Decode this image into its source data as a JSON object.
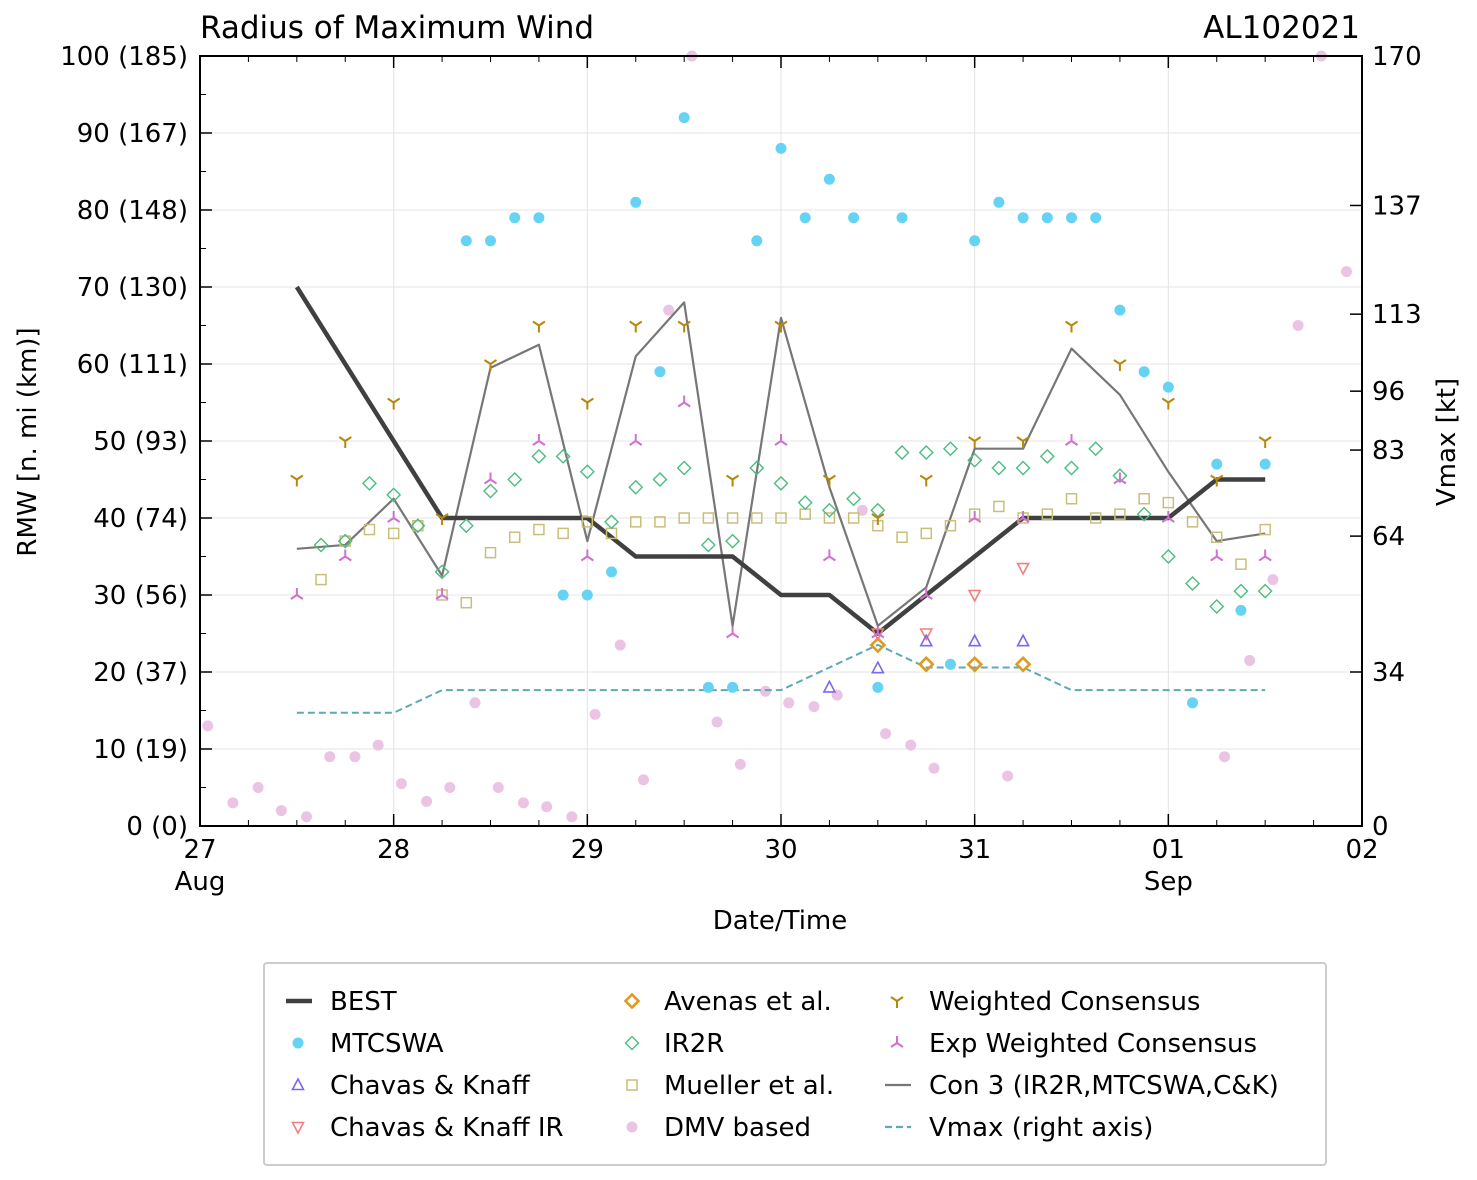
{
  "chart_data": {
    "type": "scatter",
    "title": "Radius of Maximum Wind",
    "storm_id": "AL102021",
    "xlabel": "Date/Time",
    "ylabel": "RMW [n. mi (km)]",
    "ylabel_right": "Vmax [kt]",
    "xlim": [
      0,
      6
    ],
    "ylim": [
      0,
      100
    ],
    "ylim_right": [
      0,
      170
    ],
    "x_units": "days since 27 Aug 00Z",
    "x_ticks": [
      {
        "x": 0,
        "label": "27",
        "sub": "Aug"
      },
      {
        "x": 1,
        "label": "28",
        "sub": ""
      },
      {
        "x": 2,
        "label": "29",
        "sub": ""
      },
      {
        "x": 3,
        "label": "30",
        "sub": ""
      },
      {
        "x": 4,
        "label": "31",
        "sub": ""
      },
      {
        "x": 5,
        "label": "01",
        "sub": "Sep"
      },
      {
        "x": 6,
        "label": "02",
        "sub": ""
      }
    ],
    "y_ticks": [
      {
        "v": 0,
        "label": "0 (0)"
      },
      {
        "v": 10,
        "label": "10 (19)"
      },
      {
        "v": 20,
        "label": "20 (37)"
      },
      {
        "v": 30,
        "label": "30 (56)"
      },
      {
        "v": 40,
        "label": "40 (74)"
      },
      {
        "v": 50,
        "label": "50 (93)"
      },
      {
        "v": 60,
        "label": "60 (111)"
      },
      {
        "v": 70,
        "label": "70 (130)"
      },
      {
        "v": 80,
        "label": "80 (148)"
      },
      {
        "v": 90,
        "label": "90 (167)"
      },
      {
        "v": 100,
        "label": "100 (185)"
      }
    ],
    "y_right_ticks": [
      {
        "v": 0,
        "label": "0"
      },
      {
        "v": 34,
        "label": "34"
      },
      {
        "v": 64,
        "label": "64"
      },
      {
        "v": 83,
        "label": "83"
      },
      {
        "v": 96,
        "label": "96"
      },
      {
        "v": 113,
        "label": "113"
      },
      {
        "v": 137,
        "label": "137"
      },
      {
        "v": 170,
        "label": "170"
      }
    ],
    "series": [
      {
        "name": "BEST",
        "key": "best",
        "kind": "line",
        "color": "#404040",
        "points": [
          [
            0.5,
            70
          ],
          [
            1.25,
            40
          ],
          [
            2,
            40
          ],
          [
            2.25,
            35
          ],
          [
            2.75,
            35
          ],
          [
            3,
            30
          ],
          [
            3.25,
            30
          ],
          [
            3.5,
            25
          ],
          [
            4,
            35
          ],
          [
            4.25,
            40
          ],
          [
            5,
            40
          ],
          [
            5.25,
            45
          ],
          [
            5.5,
            45
          ]
        ]
      },
      {
        "name": "MTCSWA",
        "key": "mtcswa",
        "kind": "circle",
        "color": "#66d3f5",
        "points": [
          [
            1.375,
            76
          ],
          [
            1.5,
            76
          ],
          [
            1.625,
            79
          ],
          [
            1.75,
            79
          ],
          [
            1.875,
            30
          ],
          [
            2,
            30
          ],
          [
            2.125,
            33
          ],
          [
            2.25,
            81
          ],
          [
            2.375,
            59
          ],
          [
            2.5,
            92
          ],
          [
            2.625,
            18
          ],
          [
            2.75,
            18
          ],
          [
            2.875,
            76
          ],
          [
            3,
            88
          ],
          [
            3.125,
            79
          ],
          [
            3.25,
            84
          ],
          [
            3.375,
            79
          ],
          [
            3.5,
            18
          ],
          [
            3.625,
            79
          ],
          [
            3.875,
            21
          ],
          [
            4,
            76
          ],
          [
            4.125,
            81
          ],
          [
            4.25,
            79
          ],
          [
            4.375,
            79
          ],
          [
            4.5,
            79
          ],
          [
            4.625,
            79
          ],
          [
            4.75,
            67
          ],
          [
            4.875,
            59
          ],
          [
            5,
            57
          ],
          [
            5.125,
            16
          ],
          [
            5.25,
            47
          ],
          [
            5.375,
            28
          ],
          [
            5.5,
            47
          ]
        ]
      },
      {
        "name": "Chavas & Knaff",
        "key": "ck",
        "kind": "triangle-up",
        "color": "#7b68ee",
        "points": [
          [
            3.25,
            18
          ],
          [
            3.5,
            20.5
          ],
          [
            3.75,
            24
          ],
          [
            4,
            24
          ],
          [
            4.25,
            24
          ]
        ]
      },
      {
        "name": "Chavas & Knaff IR",
        "key": "ckir",
        "kind": "triangle-down",
        "color": "#f08080",
        "points": [
          [
            3.5,
            25
          ],
          [
            3.75,
            25
          ],
          [
            4,
            30
          ],
          [
            4.25,
            33.5
          ]
        ]
      },
      {
        "name": "Avenas et al.",
        "key": "avenas",
        "kind": "diamond-bold",
        "color": "#e09a20",
        "points": [
          [
            3.5,
            23.5
          ],
          [
            3.75,
            21
          ],
          [
            4,
            21
          ],
          [
            4.25,
            21
          ]
        ]
      },
      {
        "name": "IR2R",
        "key": "ir2r",
        "kind": "diamond",
        "color": "#4cbd80",
        "points": [
          [
            0.625,
            36.5
          ],
          [
            0.75,
            37
          ],
          [
            0.875,
            44.5
          ],
          [
            1,
            43
          ],
          [
            1.125,
            39
          ],
          [
            1.25,
            33
          ],
          [
            1.375,
            39
          ],
          [
            1.5,
            43.5
          ],
          [
            1.625,
            45
          ],
          [
            1.75,
            48
          ],
          [
            1.875,
            48
          ],
          [
            2,
            46
          ],
          [
            2.125,
            39.5
          ],
          [
            2.25,
            44
          ],
          [
            2.375,
            45
          ],
          [
            2.5,
            46.5
          ],
          [
            2.625,
            36.5
          ],
          [
            2.75,
            37
          ],
          [
            2.875,
            46.5
          ],
          [
            3,
            44.5
          ],
          [
            3.125,
            42
          ],
          [
            3.25,
            41
          ],
          [
            3.375,
            42.5
          ],
          [
            3.5,
            41
          ],
          [
            3.625,
            48.5
          ],
          [
            3.75,
            48.5
          ],
          [
            3.875,
            49
          ],
          [
            4,
            47.5
          ],
          [
            4.125,
            46.5
          ],
          [
            4.25,
            46.5
          ],
          [
            4.375,
            48
          ],
          [
            4.5,
            46.5
          ],
          [
            4.625,
            49
          ],
          [
            4.75,
            45.5
          ],
          [
            4.875,
            40.5
          ],
          [
            5,
            35
          ],
          [
            5.125,
            31.5
          ],
          [
            5.25,
            28.5
          ],
          [
            5.375,
            30.5
          ],
          [
            5.5,
            30.5
          ]
        ]
      },
      {
        "name": "Mueller et al.",
        "key": "mueller",
        "kind": "square",
        "color": "#c9bf7a",
        "points": [
          [
            0.625,
            32
          ],
          [
            0.75,
            37
          ],
          [
            0.875,
            38.5
          ],
          [
            1,
            38
          ],
          [
            1.125,
            39
          ],
          [
            1.25,
            30
          ],
          [
            1.375,
            29
          ],
          [
            1.5,
            35.5
          ],
          [
            1.625,
            37.5
          ],
          [
            1.75,
            38.5
          ],
          [
            1.875,
            38
          ],
          [
            2,
            39.5
          ],
          [
            2.125,
            38
          ],
          [
            2.25,
            39.5
          ],
          [
            2.375,
            39.5
          ],
          [
            2.5,
            40
          ],
          [
            2.625,
            40
          ],
          [
            2.75,
            40
          ],
          [
            2.875,
            40
          ],
          [
            3,
            40
          ],
          [
            3.125,
            40.5
          ],
          [
            3.25,
            40
          ],
          [
            3.375,
            40
          ],
          [
            3.5,
            39
          ],
          [
            3.625,
            37.5
          ],
          [
            3.75,
            38
          ],
          [
            3.875,
            39
          ],
          [
            4,
            40.5
          ],
          [
            4.125,
            41.5
          ],
          [
            4.25,
            40
          ],
          [
            4.375,
            40.5
          ],
          [
            4.5,
            42.5
          ],
          [
            4.625,
            40
          ],
          [
            4.75,
            40.5
          ],
          [
            4.875,
            42.5
          ],
          [
            5,
            42
          ],
          [
            5.125,
            39.5
          ],
          [
            5.25,
            37.5
          ],
          [
            5.375,
            34
          ],
          [
            5.5,
            38.5
          ]
        ]
      },
      {
        "name": "DMV based",
        "key": "dmv",
        "kind": "circle-faint",
        "color": "#ebc4e4",
        "points": [
          [
            0.04,
            13
          ],
          [
            0.17,
            3
          ],
          [
            0.3,
            5
          ],
          [
            0.42,
            2
          ],
          [
            0.55,
            1.2
          ],
          [
            0.67,
            9
          ],
          [
            0.8,
            9
          ],
          [
            0.92,
            10.5
          ],
          [
            1.04,
            5.5
          ],
          [
            1.17,
            3.2
          ],
          [
            1.29,
            5
          ],
          [
            1.42,
            16
          ],
          [
            1.54,
            5
          ],
          [
            1.67,
            3
          ],
          [
            1.79,
            2.5
          ],
          [
            1.92,
            1.2
          ],
          [
            2.04,
            14.5
          ],
          [
            2.17,
            23.5
          ],
          [
            2.29,
            6
          ],
          [
            2.42,
            67
          ],
          [
            2.54,
            100
          ],
          [
            2.67,
            13.5
          ],
          [
            2.79,
            8
          ],
          [
            2.92,
            17.5
          ],
          [
            3.04,
            16
          ],
          [
            3.17,
            15.5
          ],
          [
            3.29,
            17
          ],
          [
            3.42,
            41
          ],
          [
            3.54,
            12
          ],
          [
            3.67,
            10.5
          ],
          [
            3.79,
            7.5
          ],
          [
            4.17,
            6.5
          ],
          [
            5.29,
            9
          ],
          [
            5.42,
            21.5
          ],
          [
            5.54,
            32
          ],
          [
            5.67,
            65
          ],
          [
            5.79,
            100
          ],
          [
            5.92,
            72
          ]
        ]
      },
      {
        "name": "Weighted Consensus",
        "key": "wc",
        "kind": "tri-down",
        "color": "#b8860b",
        "points": [
          [
            0.5,
            45
          ],
          [
            0.75,
            50
          ],
          [
            1,
            55
          ],
          [
            1.25,
            40
          ],
          [
            1.5,
            60
          ],
          [
            1.75,
            65
          ],
          [
            2,
            55
          ],
          [
            2.25,
            65
          ],
          [
            2.5,
            65
          ],
          [
            2.75,
            45
          ],
          [
            3,
            65
          ],
          [
            3.25,
            45
          ],
          [
            3.5,
            40
          ],
          [
            3.75,
            45
          ],
          [
            4,
            50
          ],
          [
            4.25,
            50
          ],
          [
            4.5,
            65
          ],
          [
            4.75,
            60
          ],
          [
            5,
            55
          ],
          [
            5.25,
            45
          ],
          [
            5.5,
            50
          ]
        ]
      },
      {
        "name": "Exp Weighted Consensus",
        "key": "ewc",
        "kind": "tri-up",
        "color": "#d070d0",
        "points": [
          [
            0.5,
            30
          ],
          [
            0.75,
            35
          ],
          [
            1,
            40
          ],
          [
            1.25,
            30
          ],
          [
            1.5,
            45
          ],
          [
            1.75,
            50
          ],
          [
            2,
            35
          ],
          [
            2.25,
            50
          ],
          [
            2.5,
            55
          ],
          [
            2.75,
            25
          ],
          [
            3,
            50
          ],
          [
            3.25,
            35
          ],
          [
            3.5,
            25
          ],
          [
            3.75,
            30
          ],
          [
            4,
            40
          ],
          [
            4.25,
            40
          ],
          [
            4.5,
            50
          ],
          [
            4.75,
            45
          ],
          [
            5,
            40
          ],
          [
            5.25,
            35
          ],
          [
            5.5,
            35
          ]
        ]
      },
      {
        "name": "Con 3 (IR2R,MTCSWA,C&K)",
        "key": "con3",
        "kind": "line",
        "color": "#777777",
        "points": [
          [
            0.5,
            36
          ],
          [
            0.75,
            36.5
          ],
          [
            1,
            42.5
          ],
          [
            1.25,
            32.5
          ],
          [
            1.5,
            59.5
          ],
          [
            1.75,
            62.5
          ],
          [
            2,
            37
          ],
          [
            2.25,
            61
          ],
          [
            2.5,
            68
          ],
          [
            2.75,
            26
          ],
          [
            3,
            66
          ],
          [
            3.25,
            44
          ],
          [
            3.5,
            26
          ],
          [
            3.75,
            31
          ],
          [
            4,
            49
          ],
          [
            4.25,
            49
          ],
          [
            4.5,
            62
          ],
          [
            4.75,
            56
          ],
          [
            5,
            46
          ],
          [
            5.25,
            37
          ],
          [
            5.5,
            38
          ]
        ]
      },
      {
        "name": "Vmax (right axis)",
        "key": "vmax",
        "kind": "dashed-line",
        "color": "#5fa8b6",
        "axis": "right",
        "points": [
          [
            0.5,
            25
          ],
          [
            1,
            25
          ],
          [
            1.25,
            30
          ],
          [
            3,
            30
          ],
          [
            3.5,
            40
          ],
          [
            3.75,
            35
          ],
          [
            4.25,
            35
          ],
          [
            4.5,
            30
          ],
          [
            5.5,
            30
          ]
        ]
      }
    ]
  }
}
